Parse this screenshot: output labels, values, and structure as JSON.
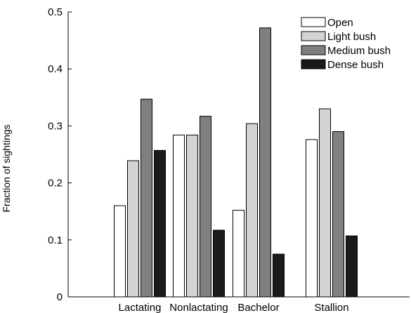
{
  "chart_data": {
    "type": "bar",
    "title": "",
    "xlabel": "",
    "ylabel": "Fraction of sightings",
    "ylim": [
      0,
      0.5
    ],
    "yticks": [
      0,
      0.1,
      0.2,
      0.3,
      0.4,
      0.5
    ],
    "ytick_labels": [
      "0",
      "0.1",
      "0.2",
      "0.3",
      "0.4",
      "0.5"
    ],
    "categories": [
      "Lactating",
      "Nonlactating",
      "Bachelor",
      "Stallion"
    ],
    "grid": false,
    "legend_position": "top-right",
    "series": [
      {
        "name": "Open",
        "color": "#ffffff",
        "values": [
          0.16,
          0.284,
          0.152,
          0.276
        ]
      },
      {
        "name": "Light bush",
        "color": "#d3d3d3",
        "values": [
          0.239,
          0.284,
          0.304,
          0.33
        ]
      },
      {
        "name": "Medium bush",
        "color": "#808080",
        "values": [
          0.347,
          0.317,
          0.472,
          0.29
        ]
      },
      {
        "name": "Dense bush",
        "color": "#1a1a1a",
        "values": [
          0.257,
          0.117,
          0.075,
          0.107
        ]
      }
    ]
  }
}
